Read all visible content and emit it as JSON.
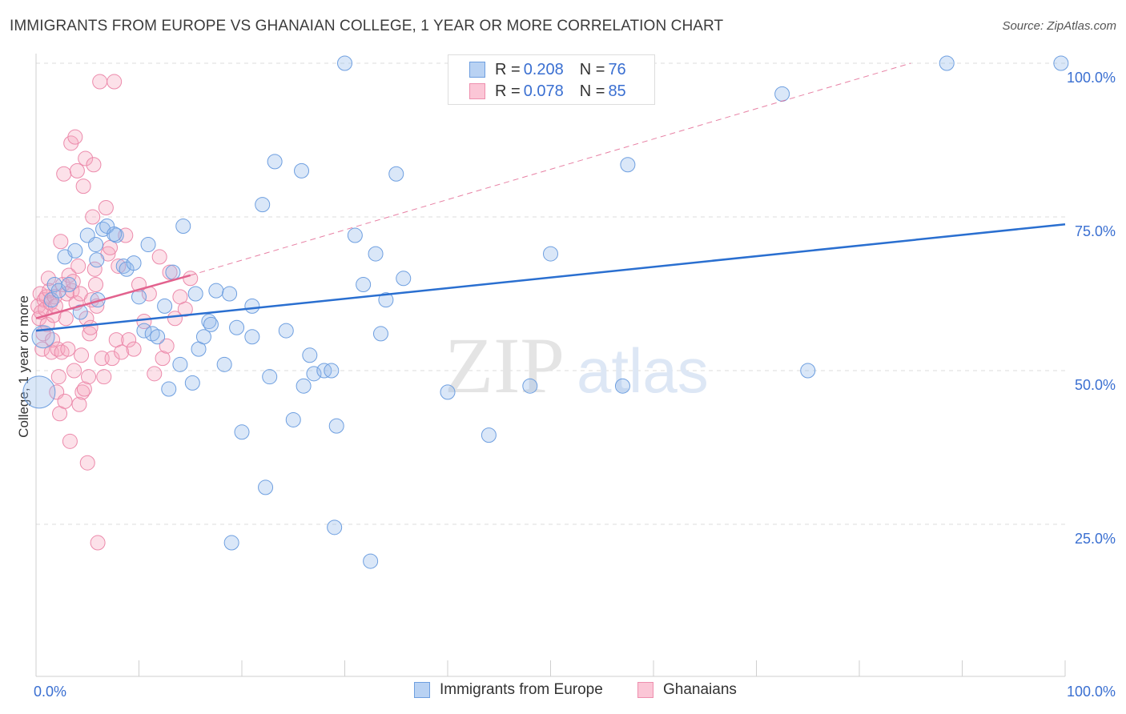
{
  "header": {
    "title": "IMMIGRANTS FROM EUROPE VS GHANAIAN COLLEGE, 1 YEAR OR MORE CORRELATION CHART",
    "source": "Source: ZipAtlas.com"
  },
  "watermark": {
    "zip": "ZIP",
    "atlas": "atlas"
  },
  "legend": {
    "r_label": "R =",
    "n_label": "N =",
    "rows": [
      {
        "name": "Immigrants from Europe",
        "r": "0.208",
        "n": "76",
        "fill": "#b9d2f3",
        "stroke": "#6e9fe0"
      },
      {
        "name": "Ghanaians",
        "r": "0.078",
        "n": "85",
        "fill": "#fbc6d6",
        "stroke": "#ee8fae"
      }
    ]
  },
  "colors": {
    "blue_point_fill": "rgba(150,187,235,0.35)",
    "blue_point_stroke": "#6e9fe0",
    "blue_line": "#2a6fd0",
    "pink_point_fill": "rgba(246,168,193,0.35)",
    "pink_point_stroke": "#ec8aab",
    "pink_line": "#e2628e",
    "grid": "#dcdcdc",
    "axis_label": "#3a6fd1"
  },
  "chart_data": {
    "type": "scatter",
    "title": "IMMIGRANTS FROM EUROPE VS GHANAIAN COLLEGE, 1 YEAR OR MORE CORRELATION CHART",
    "xlabel": "",
    "ylabel": "College, 1 year or more",
    "xlim": [
      0,
      100
    ],
    "ylim": [
      0,
      102
    ],
    "x_tick_labels": [
      {
        "value": 0,
        "label": "0.0%"
      },
      {
        "value": 100,
        "label": "100.0%"
      }
    ],
    "y_tick_labels": [
      {
        "value": 25,
        "label": "25.0%"
      },
      {
        "value": 50,
        "label": "50.0%"
      },
      {
        "value": 75,
        "label": "75.0%"
      },
      {
        "value": 100,
        "label": "100.0%"
      }
    ],
    "grid": true,
    "series": [
      {
        "name": "Immigrants from Europe",
        "trend": {
          "x": [
            0,
            100
          ],
          "y": [
            56.5,
            73.8
          ]
        },
        "points": [
          [
            0.3,
            46.5,
            "L"
          ],
          [
            0.7,
            55.5,
            "M"
          ],
          [
            1.5,
            61.5,
            "S"
          ],
          [
            1.8,
            64,
            "S"
          ],
          [
            2.2,
            63,
            "S"
          ],
          [
            2.8,
            68.5,
            "S"
          ],
          [
            3.2,
            64,
            "S"
          ],
          [
            3.8,
            69.5,
            "S"
          ],
          [
            4.3,
            59.5,
            "S"
          ],
          [
            5,
            72,
            "S"
          ],
          [
            5.8,
            70.5,
            "S"
          ],
          [
            6,
            61.5,
            "S"
          ],
          [
            5.9,
            68,
            "S"
          ],
          [
            6.5,
            73,
            "S"
          ],
          [
            6.9,
            73.5,
            "S"
          ],
          [
            7.8,
            72,
            "S"
          ],
          [
            7.6,
            72.2,
            "S"
          ],
          [
            8.5,
            67,
            "S"
          ],
          [
            8.8,
            66.5,
            "S"
          ],
          [
            9.5,
            67.5,
            "S"
          ],
          [
            10,
            62,
            "S"
          ],
          [
            10.5,
            56.5,
            "S"
          ],
          [
            10.9,
            70.5,
            "S"
          ],
          [
            11.3,
            56,
            "S"
          ],
          [
            11.8,
            55.5,
            "S"
          ],
          [
            12.5,
            60.5,
            "S"
          ],
          [
            12.9,
            47,
            "S"
          ],
          [
            13.3,
            66,
            "S"
          ],
          [
            14,
            51,
            "S"
          ],
          [
            14.3,
            73.5,
            "S"
          ],
          [
            15.2,
            48,
            "S"
          ],
          [
            15.5,
            62.5,
            "S"
          ],
          [
            15.8,
            53.5,
            "S"
          ],
          [
            16.3,
            55.5,
            "S"
          ],
          [
            16.8,
            58,
            "S"
          ],
          [
            17,
            57.5,
            "S"
          ],
          [
            17.5,
            63,
            "S"
          ],
          [
            18.3,
            51,
            "S"
          ],
          [
            18.8,
            62.5,
            "S"
          ],
          [
            19,
            22,
            "S"
          ],
          [
            19.5,
            57,
            "S"
          ],
          [
            20,
            40,
            "S"
          ],
          [
            21,
            55.5,
            "S"
          ],
          [
            21,
            60.5,
            "S"
          ],
          [
            22,
            77,
            "S"
          ],
          [
            22.3,
            31,
            "S"
          ],
          [
            22.7,
            49,
            "S"
          ],
          [
            23.2,
            84,
            "S"
          ],
          [
            24.3,
            56.5,
            "S"
          ],
          [
            25,
            42,
            "S"
          ],
          [
            25.8,
            82.5,
            "S"
          ],
          [
            26,
            47.5,
            "S"
          ],
          [
            26.6,
            52.5,
            "S"
          ],
          [
            27,
            49.5,
            "S"
          ],
          [
            28,
            50,
            "S"
          ],
          [
            28.7,
            50,
            "S"
          ],
          [
            29,
            24.5,
            "S"
          ],
          [
            29.2,
            41,
            "S"
          ],
          [
            30,
            100,
            "S"
          ],
          [
            31,
            72,
            "S"
          ],
          [
            31.8,
            64,
            "S"
          ],
          [
            32.5,
            19,
            "S"
          ],
          [
            33,
            69,
            "S"
          ],
          [
            33.5,
            56,
            "S"
          ],
          [
            34,
            61.5,
            "S"
          ],
          [
            35,
            82,
            "S"
          ],
          [
            35.7,
            65,
            "S"
          ],
          [
            40,
            46.5,
            "S"
          ],
          [
            44,
            39.5,
            "S"
          ],
          [
            48,
            47.5,
            "S"
          ],
          [
            50,
            69,
            "S"
          ],
          [
            57,
            47.5,
            "S"
          ],
          [
            57.5,
            83.5,
            "S"
          ],
          [
            72.5,
            95,
            "S"
          ],
          [
            75,
            50,
            "S"
          ],
          [
            88.5,
            100,
            "S"
          ],
          [
            99.6,
            100,
            "S"
          ]
        ]
      },
      {
        "name": "Ghanaians",
        "trend": {
          "x": [
            0,
            15
          ],
          "y": [
            58.5,
            65.5
          ]
        },
        "trend_ext": {
          "x": [
            15,
            85
          ],
          "y": [
            65.5,
            100
          ]
        },
        "points": [
          [
            0.2,
            60.5,
            "S"
          ],
          [
            0.3,
            58.5,
            "S"
          ],
          [
            0.4,
            62.5,
            "S"
          ],
          [
            0.5,
            59.5,
            "S"
          ],
          [
            0.6,
            53.5,
            "S"
          ],
          [
            0.7,
            56,
            "S"
          ],
          [
            0.8,
            61.5,
            "S"
          ],
          [
            0.9,
            60,
            "S"
          ],
          [
            1,
            62,
            "S"
          ],
          [
            1.1,
            57.5,
            "S"
          ],
          [
            1.2,
            65,
            "S"
          ],
          [
            1.3,
            63,
            "S"
          ],
          [
            1.4,
            61,
            "S"
          ],
          [
            1.5,
            53,
            "S"
          ],
          [
            1.6,
            55,
            "S"
          ],
          [
            1.7,
            59,
            "S"
          ],
          [
            1.8,
            62,
            "S"
          ],
          [
            1.9,
            60.5,
            "S"
          ],
          [
            2,
            46.5,
            "S"
          ],
          [
            2.1,
            53.5,
            "S"
          ],
          [
            2.2,
            49,
            "S"
          ],
          [
            2.3,
            43,
            "S"
          ],
          [
            2.4,
            71,
            "S"
          ],
          [
            2.5,
            53,
            "S"
          ],
          [
            2.6,
            64,
            "S"
          ],
          [
            2.7,
            82,
            "S"
          ],
          [
            2.8,
            45,
            "S"
          ],
          [
            2.9,
            58.5,
            "S"
          ],
          [
            3,
            62.5,
            "S"
          ],
          [
            3.1,
            53.5,
            "S"
          ],
          [
            3.2,
            65.5,
            "S"
          ],
          [
            3.3,
            38.5,
            "S"
          ],
          [
            3.4,
            87,
            "S"
          ],
          [
            3.5,
            63,
            "S"
          ],
          [
            3.6,
            64.5,
            "S"
          ],
          [
            3.7,
            50,
            "S"
          ],
          [
            3.8,
            88,
            "S"
          ],
          [
            3.9,
            61,
            "S"
          ],
          [
            4,
            82.5,
            "S"
          ],
          [
            4.1,
            67,
            "S"
          ],
          [
            4.2,
            44.5,
            "S"
          ],
          [
            4.3,
            62.5,
            "S"
          ],
          [
            4.4,
            52.5,
            "S"
          ],
          [
            4.5,
            46.5,
            "S"
          ],
          [
            4.6,
            80,
            "S"
          ],
          [
            4.7,
            47,
            "S"
          ],
          [
            4.8,
            84.5,
            "S"
          ],
          [
            4.9,
            58.5,
            "S"
          ],
          [
            5,
            35,
            "S"
          ],
          [
            5.1,
            49,
            "S"
          ],
          [
            5.2,
            56,
            "S"
          ],
          [
            5.3,
            57,
            "S"
          ],
          [
            5.4,
            61.5,
            "S"
          ],
          [
            5.5,
            75,
            "S"
          ],
          [
            5.6,
            83.5,
            "S"
          ],
          [
            5.7,
            66.5,
            "S"
          ],
          [
            5.8,
            64,
            "S"
          ],
          [
            5.9,
            60.5,
            "S"
          ],
          [
            6,
            22,
            "S"
          ],
          [
            6.2,
            97,
            "S"
          ],
          [
            6.4,
            52,
            "S"
          ],
          [
            6.6,
            49,
            "S"
          ],
          [
            6.8,
            76.5,
            "S"
          ],
          [
            7,
            69,
            "S"
          ],
          [
            7.2,
            70,
            "S"
          ],
          [
            7.4,
            52,
            "S"
          ],
          [
            7.6,
            97,
            "S"
          ],
          [
            7.8,
            55,
            "S"
          ],
          [
            8,
            67,
            "S"
          ],
          [
            8.3,
            53,
            "S"
          ],
          [
            8.7,
            72,
            "S"
          ],
          [
            9,
            55,
            "S"
          ],
          [
            9.5,
            53.5,
            "S"
          ],
          [
            10,
            64,
            "S"
          ],
          [
            10.5,
            58,
            "S"
          ],
          [
            11,
            62.5,
            "S"
          ],
          [
            11.5,
            49.5,
            "S"
          ],
          [
            12,
            68.5,
            "S"
          ],
          [
            12.3,
            52,
            "S"
          ],
          [
            12.7,
            54,
            "S"
          ],
          [
            13,
            66,
            "S"
          ],
          [
            13.5,
            58.5,
            "S"
          ],
          [
            14,
            62,
            "S"
          ],
          [
            14.5,
            60,
            "S"
          ],
          [
            15,
            65,
            "S"
          ]
        ]
      }
    ]
  }
}
